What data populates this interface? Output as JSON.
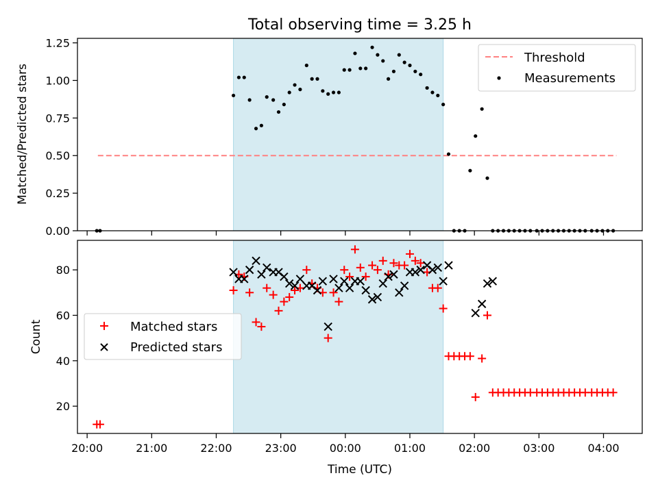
{
  "figure": {
    "title": "Total observing time = 3.25 h",
    "xlabel": "Time (UTC)"
  },
  "chart_data": [
    {
      "type": "scatter",
      "title": "Total observing time = 3.25 h",
      "ylabel": "Matched/Predicted stars",
      "xlim": [
        "19:51",
        "04:36"
      ],
      "ylim": [
        0,
        1.28
      ],
      "xticks": [
        "20:00",
        "21:00",
        "22:00",
        "23:00",
        "00:00",
        "01:00",
        "02:00",
        "03:00",
        "04:00"
      ],
      "yticks": [
        "0.00",
        "0.25",
        "0.50",
        "0.75",
        "1.00",
        "1.25"
      ],
      "grid": false,
      "legend_position": "upper right",
      "shaded_span": [
        "22:16",
        "01:31"
      ],
      "threshold": {
        "name": "Threshold",
        "y": 0.5,
        "x_start": "20:10",
        "x_end": "04:12",
        "color": "#ff8080"
      },
      "measurements": {
        "name": "Measurements",
        "color": "#000000",
        "x": [
          "20:09",
          "20:12",
          "22:16",
          "22:21",
          "22:26",
          "22:31",
          "22:37",
          "22:42",
          "22:47",
          "22:53",
          "22:58",
          "23:03",
          "23:08",
          "23:13",
          "23:18",
          "23:24",
          "23:29",
          "23:34",
          "23:39",
          "23:44",
          "23:49",
          "23:54",
          "23:59",
          "00:04",
          "00:09",
          "00:14",
          "00:19",
          "00:25",
          "00:30",
          "00:35",
          "00:40",
          "00:45",
          "00:50",
          "00:55",
          "01:00",
          "01:05",
          "01:10",
          "01:16",
          "01:21",
          "01:26",
          "01:31",
          "01:36",
          "01:41",
          "01:46",
          "01:51",
          "01:56",
          "02:01",
          "02:07",
          "02:12",
          "02:17",
          "02:22",
          "02:27",
          "02:32",
          "02:37",
          "02:42",
          "02:47",
          "02:52",
          "02:58",
          "03:03",
          "03:08",
          "03:13",
          "03:18",
          "03:23",
          "03:28",
          "03:33",
          "03:38",
          "03:43",
          "03:49",
          "03:54",
          "03:59",
          "04:04",
          "04:09"
        ],
        "y": [
          0,
          0,
          0.9,
          1.02,
          1.02,
          0.87,
          0.68,
          0.7,
          0.89,
          0.87,
          0.79,
          0.84,
          0.92,
          0.97,
          0.94,
          1.1,
          1.01,
          1.01,
          0.93,
          0.91,
          0.92,
          0.92,
          1.07,
          1.07,
          1.18,
          1.08,
          1.08,
          1.22,
          1.17,
          1.13,
          1.01,
          1.06,
          1.17,
          1.12,
          1.1,
          1.06,
          1.04,
          0.95,
          0.92,
          0.9,
          0.84,
          0.51,
          0,
          0,
          0,
          0.4,
          0.63,
          0.81,
          0.35,
          0,
          0,
          0,
          0,
          0,
          0,
          0,
          0,
          0,
          0,
          0,
          0,
          0,
          0,
          0,
          0,
          0,
          0,
          0,
          0,
          0,
          0,
          0
        ]
      }
    },
    {
      "type": "scatter",
      "ylabel": "Count",
      "xlabel": "Time (UTC)",
      "xlim": [
        "19:51",
        "04:36"
      ],
      "ylim": [
        8,
        93
      ],
      "xticks": [
        "20:00",
        "21:00",
        "22:00",
        "23:00",
        "00:00",
        "01:00",
        "02:00",
        "03:00",
        "04:00"
      ],
      "yticks": [
        "20",
        "40",
        "60",
        "80"
      ],
      "grid": false,
      "legend_position": "center left",
      "shaded_span": [
        "22:16",
        "01:31"
      ],
      "series": [
        {
          "name": "Matched stars",
          "marker": "+",
          "color": "#ff0000",
          "x": [
            "20:09",
            "20:12",
            "22:16",
            "22:21",
            "22:26",
            "22:31",
            "22:37",
            "22:42",
            "22:47",
            "22:53",
            "22:58",
            "23:03",
            "23:08",
            "23:13",
            "23:18",
            "23:24",
            "23:29",
            "23:34",
            "23:39",
            "23:44",
            "23:49",
            "23:54",
            "23:59",
            "00:04",
            "00:09",
            "00:14",
            "00:19",
            "00:25",
            "00:30",
            "00:35",
            "00:40",
            "00:45",
            "00:50",
            "00:55",
            "01:00",
            "01:05",
            "01:10",
            "01:16",
            "01:21",
            "01:26",
            "01:31",
            "01:36",
            "01:41",
            "01:46",
            "01:51",
            "01:56",
            "02:01",
            "02:07",
            "02:12",
            "02:17",
            "02:22",
            "02:27",
            "02:32",
            "02:37",
            "02:42",
            "02:47",
            "02:52",
            "02:58",
            "03:03",
            "03:08",
            "03:13",
            "03:18",
            "03:23",
            "03:28",
            "03:33",
            "03:38",
            "03:43",
            "03:49",
            "03:54",
            "03:59",
            "04:04",
            "04:09"
          ],
          "y": [
            12,
            12,
            71,
            78,
            77,
            70,
            57,
            55,
            72,
            69,
            62,
            66,
            68,
            71,
            72,
            80,
            74,
            72,
            70,
            50,
            70,
            66,
            80,
            77,
            89,
            81,
            77,
            82,
            80,
            84,
            78,
            83,
            82,
            82,
            87,
            84,
            83,
            79,
            72,
            72,
            63,
            42,
            42,
            42,
            42,
            42,
            24,
            41,
            60,
            26,
            26,
            26,
            26,
            26,
            26,
            26,
            26,
            26,
            26,
            26,
            26,
            26,
            26,
            26,
            26,
            26,
            26,
            26,
            26,
            26,
            26,
            26
          ]
        },
        {
          "name": "Predicted stars",
          "marker": "x",
          "color": "#000000",
          "x": [
            "22:16",
            "22:21",
            "22:26",
            "22:31",
            "22:37",
            "22:42",
            "22:47",
            "22:53",
            "22:58",
            "23:03",
            "23:08",
            "23:13",
            "23:18",
            "23:24",
            "23:29",
            "23:34",
            "23:39",
            "23:44",
            "23:49",
            "23:54",
            "23:59",
            "00:04",
            "00:09",
            "00:14",
            "00:19",
            "00:25",
            "00:30",
            "00:35",
            "00:40",
            "00:45",
            "00:50",
            "00:55",
            "01:00",
            "01:05",
            "01:10",
            "01:16",
            "01:21",
            "01:26",
            "01:31",
            "01:36",
            "02:01",
            "02:07",
            "02:12",
            "02:17"
          ],
          "y": [
            79,
            76,
            76,
            80,
            84,
            78,
            81,
            79,
            79,
            77,
            74,
            73,
            76,
            73,
            73,
            71,
            75,
            55,
            76,
            72,
            75,
            72,
            75,
            75,
            71,
            67,
            68,
            74,
            77,
            78,
            70,
            73,
            79,
            79,
            80,
            82,
            80,
            81,
            75,
            82,
            61,
            65,
            74,
            75
          ]
        }
      ]
    }
  ]
}
